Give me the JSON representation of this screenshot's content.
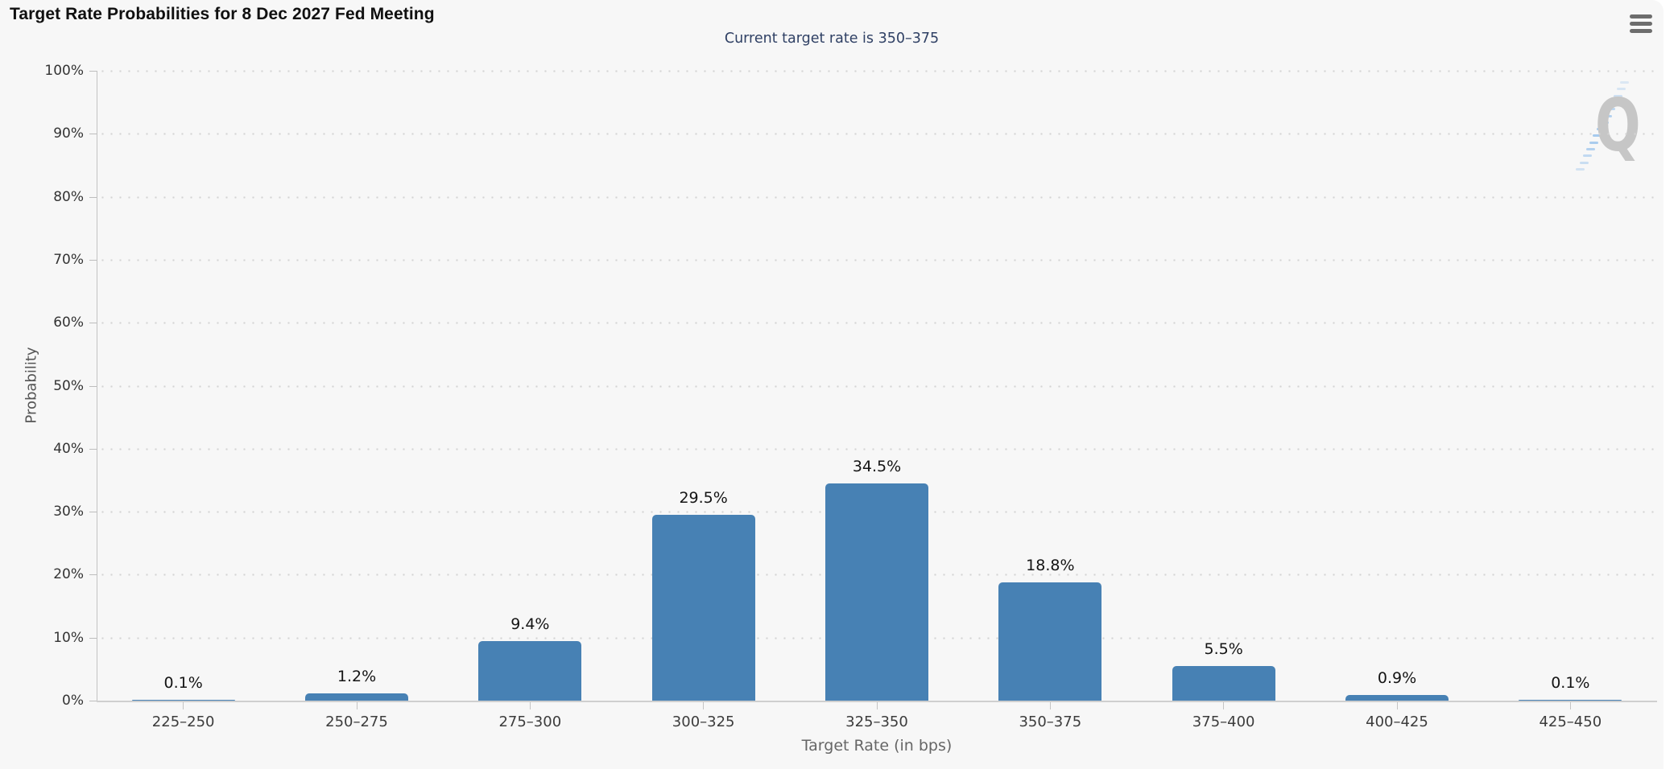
{
  "chart_data": {
    "type": "bar",
    "title": "Target Rate Probabilities for 8 Dec 2027 Fed Meeting",
    "subtitle": "Current target rate is 350–375",
    "xlabel": "Target Rate (in bps)",
    "ylabel": "Probability",
    "categories": [
      "225–250",
      "250–275",
      "275–300",
      "300–325",
      "325–350",
      "350–375",
      "375–400",
      "400–425",
      "425–450"
    ],
    "values": [
      0.1,
      1.2,
      9.4,
      29.5,
      34.5,
      18.8,
      5.5,
      0.9,
      0.1
    ],
    "value_labels": [
      "0.1%",
      "1.2%",
      "9.4%",
      "29.5%",
      "34.5%",
      "18.8%",
      "5.5%",
      "0.9%",
      "0.1%"
    ],
    "ylim": [
      0,
      100
    ],
    "ytick_step": 10,
    "ytick_labels": [
      "0%",
      "10%",
      "20%",
      "30%",
      "40%",
      "50%",
      "60%",
      "70%",
      "80%",
      "90%",
      "100%"
    ],
    "legend": "none",
    "grid": "dotted-horizontal",
    "bar_color": "#4781b4"
  },
  "header": {
    "menu_icon": "hamburger-menu-icon"
  },
  "watermark": {
    "letter": "Q"
  },
  "colors": {
    "page_bg": "#ffffff",
    "panel_bg": "#f7f7f7",
    "title_text": "#101010",
    "subtitle_text": "#2f4064",
    "axis_label_text": "#3c3c3c",
    "axis_title_text": "#666666",
    "bar": "#4781b4",
    "gridline_dot": "#d4d4d4",
    "watermark_gray": "#c6c6c6",
    "watermark_blue": "#9cc4ec"
  }
}
